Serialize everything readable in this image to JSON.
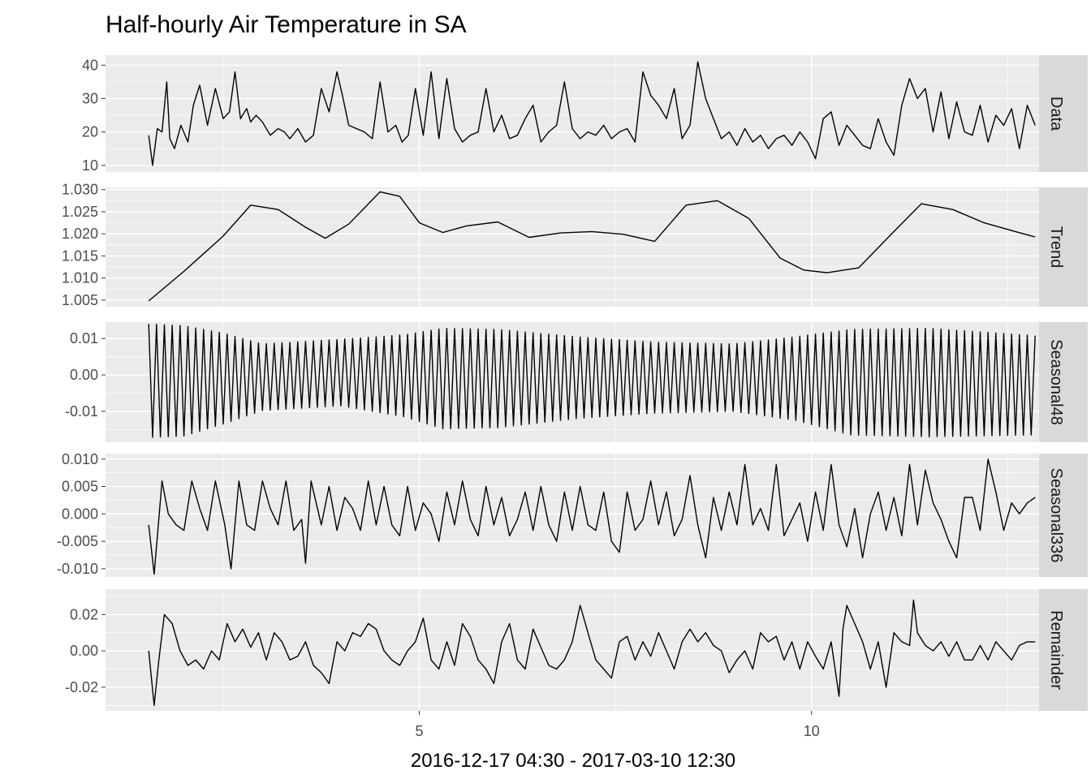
{
  "chart_data": {
    "type": "line",
    "title": "Half-hourly Air Temperature in SA",
    "xlabel": "2016-12-17 04:30 - 2017-03-10 12:30",
    "x_range": [
      1,
      12.9
    ],
    "x_ticks": [
      5,
      10
    ],
    "x_tick_labels": [
      "5",
      "10"
    ],
    "grid": true,
    "series_line_color": "#000000",
    "panel_background": "#ebebeb",
    "strip_background": "#d9d9d9",
    "panels": [
      {
        "name": "Data",
        "ylim": [
          8,
          43
        ],
        "y_ticks": [
          10,
          20,
          30,
          40
        ],
        "y_tick_labels": [
          "10",
          "20",
          "30",
          "40"
        ],
        "x": [
          1.55,
          1.6,
          1.66,
          1.72,
          1.78,
          1.82,
          1.88,
          1.96,
          2.05,
          2.12,
          2.2,
          2.3,
          2.4,
          2.5,
          2.58,
          2.65,
          2.72,
          2.8,
          2.85,
          2.92,
          3.0,
          3.1,
          3.2,
          3.28,
          3.35,
          3.45,
          3.55,
          3.65,
          3.75,
          3.85,
          3.95,
          4.02,
          4.1,
          4.2,
          4.3,
          4.4,
          4.5,
          4.6,
          4.7,
          4.78,
          4.86,
          4.95,
          5.05,
          5.15,
          5.25,
          5.35,
          5.45,
          5.55,
          5.65,
          5.75,
          5.85,
          5.95,
          6.05,
          6.15,
          6.25,
          6.35,
          6.45,
          6.55,
          6.65,
          6.75,
          6.85,
          6.95,
          7.05,
          7.15,
          7.25,
          7.35,
          7.45,
          7.55,
          7.65,
          7.75,
          7.85,
          7.95,
          8.05,
          8.15,
          8.25,
          8.35,
          8.45,
          8.55,
          8.65,
          8.75,
          8.85,
          8.95,
          9.05,
          9.15,
          9.25,
          9.35,
          9.45,
          9.55,
          9.65,
          9.75,
          9.85,
          9.95,
          10.05,
          10.15,
          10.25,
          10.35,
          10.45,
          10.55,
          10.65,
          10.75,
          10.85,
          10.95,
          11.05,
          11.15,
          11.25,
          11.35,
          11.45,
          11.55,
          11.65,
          11.75,
          11.85,
          11.95,
          12.05,
          12.15,
          12.25,
          12.35,
          12.45,
          12.55,
          12.65,
          12.75,
          12.85
        ],
        "values": [
          19,
          10,
          21,
          20,
          35,
          18,
          15,
          22,
          17,
          28,
          34,
          22,
          33,
          24,
          26,
          38,
          24,
          27,
          23,
          25,
          23,
          19,
          21,
          20,
          18,
          21,
          17,
          19,
          33,
          26,
          38,
          31,
          22,
          21,
          20,
          18,
          35,
          20,
          22,
          17,
          19,
          33,
          19,
          38,
          18,
          36,
          21,
          17,
          19,
          20,
          33,
          20,
          25,
          18,
          19,
          24,
          28,
          17,
          20,
          22,
          35,
          21,
          18,
          20,
          19,
          22,
          18,
          20,
          21,
          17,
          38,
          31,
          28,
          24,
          33,
          18,
          22,
          41,
          30,
          24,
          18,
          20,
          16,
          21,
          17,
          19,
          15,
          18,
          19,
          16,
          20,
          17,
          12,
          24,
          26,
          16,
          22,
          19,
          16,
          15,
          24,
          17,
          13,
          28,
          36,
          30,
          33,
          20,
          32,
          18,
          29,
          20,
          19,
          28,
          17,
          25,
          22,
          27,
          15,
          28,
          22
        ]
      },
      {
        "name": "Trend",
        "ylim": [
          1.0035,
          1.0305
        ],
        "y_ticks": [
          1.005,
          1.01,
          1.015,
          1.02,
          1.025,
          1.03
        ],
        "y_tick_labels": [
          "1.005",
          "1.010",
          "1.015",
          "1.020",
          "1.025",
          "1.030"
        ],
        "x": [
          1.55,
          2.0,
          2.5,
          2.85,
          3.2,
          3.55,
          3.8,
          4.1,
          4.5,
          4.75,
          5.0,
          5.3,
          5.6,
          6.0,
          6.4,
          6.8,
          7.2,
          7.6,
          8.0,
          8.4,
          8.8,
          9.2,
          9.6,
          9.9,
          10.2,
          10.6,
          11.0,
          11.4,
          11.8,
          12.2,
          12.6,
          12.85
        ],
        "values": [
          1.0048,
          1.0115,
          1.0195,
          1.0265,
          1.0255,
          1.0215,
          1.019,
          1.0222,
          1.0295,
          1.0285,
          1.0225,
          1.0203,
          1.0218,
          1.0227,
          1.0192,
          1.0202,
          1.0205,
          1.0199,
          1.0183,
          1.0265,
          1.0275,
          1.0235,
          1.0145,
          1.0118,
          1.0112,
          1.0123,
          1.0196,
          1.0268,
          1.0255,
          1.0225,
          1.0205,
          1.0193
        ]
      },
      {
        "name": "Seasonal48",
        "ylim": [
          -0.0185,
          0.0145
        ],
        "y_ticks": [
          -0.01,
          0.0,
          0.01
        ],
        "y_tick_labels": [
          "-0.01",
          "0.00",
          "0.01"
        ],
        "period": 0.1,
        "x_start": 1.55,
        "x_end": 12.85,
        "amplitude_knots_x": [
          1.55,
          2.0,
          2.5,
          3.0,
          4.0,
          4.8,
          5.3,
          6.0,
          7.0,
          8.0,
          9.0,
          9.8,
          10.5,
          11.5,
          12.85
        ],
        "amplitude_knots_min": [
          -0.0172,
          -0.0168,
          -0.0135,
          -0.0098,
          -0.0085,
          -0.0115,
          -0.0148,
          -0.0145,
          -0.012,
          -0.0105,
          -0.01,
          -0.0125,
          -0.0165,
          -0.017,
          -0.0165
        ],
        "amplitude_knots_max": [
          0.014,
          0.0135,
          0.0115,
          0.0085,
          0.0098,
          0.011,
          0.0128,
          0.0125,
          0.0105,
          0.009,
          0.0085,
          0.0105,
          0.0125,
          0.0128,
          0.0108
        ]
      },
      {
        "name": "Seasonal336",
        "ylim": [
          -0.0115,
          0.011
        ],
        "y_ticks": [
          -0.01,
          -0.005,
          0.0,
          0.005,
          0.01
        ],
        "y_tick_labels": [
          "-0.010",
          "-0.005",
          "0.000",
          "0.005",
          "0.010"
        ],
        "x": [
          1.55,
          1.62,
          1.72,
          1.8,
          1.9,
          2.0,
          2.1,
          2.2,
          2.3,
          2.4,
          2.52,
          2.6,
          2.7,
          2.8,
          2.9,
          3.0,
          3.1,
          3.2,
          3.3,
          3.4,
          3.5,
          3.55,
          3.62,
          3.75,
          3.85,
          3.95,
          4.05,
          4.15,
          4.25,
          4.35,
          4.45,
          4.55,
          4.65,
          4.75,
          4.85,
          4.95,
          5.05,
          5.15,
          5.25,
          5.35,
          5.45,
          5.55,
          5.65,
          5.75,
          5.85,
          5.95,
          6.05,
          6.15,
          6.25,
          6.35,
          6.45,
          6.55,
          6.65,
          6.75,
          6.85,
          6.95,
          7.05,
          7.15,
          7.25,
          7.35,
          7.45,
          7.55,
          7.65,
          7.75,
          7.85,
          7.95,
          8.05,
          8.15,
          8.25,
          8.35,
          8.45,
          8.55,
          8.65,
          8.75,
          8.85,
          8.95,
          9.05,
          9.15,
          9.25,
          9.35,
          9.45,
          9.55,
          9.65,
          9.75,
          9.85,
          9.95,
          10.05,
          10.15,
          10.25,
          10.35,
          10.45,
          10.55,
          10.65,
          10.75,
          10.85,
          10.95,
          11.05,
          11.15,
          11.25,
          11.35,
          11.45,
          11.55,
          11.65,
          11.75,
          11.85,
          11.95,
          12.05,
          12.15,
          12.25,
          12.35,
          12.45,
          12.55,
          12.65,
          12.75,
          12.85
        ],
        "values": [
          -0.002,
          -0.011,
          0.006,
          0.0,
          -0.002,
          -0.003,
          0.006,
          0.001,
          -0.003,
          0.006,
          -0.002,
          -0.01,
          0.006,
          -0.002,
          -0.003,
          0.006,
          0.001,
          -0.002,
          0.006,
          -0.003,
          -0.001,
          -0.009,
          0.006,
          -0.002,
          0.005,
          -0.003,
          0.003,
          0.001,
          -0.003,
          0.006,
          -0.002,
          0.005,
          -0.002,
          -0.004,
          0.005,
          -0.003,
          0.002,
          0.0,
          -0.005,
          0.004,
          -0.002,
          0.006,
          -0.001,
          -0.004,
          0.005,
          -0.002,
          0.003,
          -0.004,
          -0.001,
          0.004,
          -0.003,
          0.005,
          -0.002,
          -0.005,
          0.004,
          -0.003,
          0.005,
          -0.002,
          -0.003,
          0.004,
          -0.005,
          -0.007,
          0.004,
          -0.003,
          -0.001,
          0.006,
          -0.002,
          0.004,
          -0.004,
          -0.001,
          0.007,
          -0.002,
          -0.008,
          0.003,
          -0.003,
          0.004,
          -0.002,
          0.009,
          -0.002,
          0.001,
          -0.003,
          0.009,
          -0.004,
          -0.001,
          0.002,
          -0.005,
          0.004,
          -0.003,
          0.009,
          -0.002,
          -0.006,
          0.001,
          -0.008,
          0.0,
          0.004,
          -0.003,
          0.003,
          -0.004,
          0.009,
          -0.002,
          0.008,
          0.002,
          -0.001,
          -0.005,
          -0.008,
          0.003,
          0.003,
          -0.003,
          0.01,
          0.004,
          -0.003,
          0.002,
          0.0,
          0.002,
          0.003
        ]
      },
      {
        "name": "Remainder",
        "ylim": [
          -0.033,
          0.034
        ],
        "y_ticks": [
          -0.02,
          0.0,
          0.02
        ],
        "y_tick_labels": [
          "-0.02",
          "0.00",
          "0.02"
        ],
        "x": [
          1.55,
          1.62,
          1.68,
          1.75,
          1.85,
          1.95,
          2.05,
          2.15,
          2.25,
          2.35,
          2.45,
          2.55,
          2.65,
          2.75,
          2.85,
          2.95,
          3.05,
          3.15,
          3.25,
          3.35,
          3.45,
          3.55,
          3.65,
          3.75,
          3.85,
          3.95,
          4.05,
          4.15,
          4.25,
          4.35,
          4.45,
          4.55,
          4.65,
          4.75,
          4.85,
          4.95,
          5.05,
          5.15,
          5.25,
          5.35,
          5.45,
          5.55,
          5.65,
          5.75,
          5.85,
          5.95,
          6.05,
          6.15,
          6.25,
          6.35,
          6.45,
          6.55,
          6.65,
          6.75,
          6.85,
          6.95,
          7.05,
          7.15,
          7.25,
          7.35,
          7.45,
          7.55,
          7.65,
          7.75,
          7.85,
          7.95,
          8.05,
          8.15,
          8.25,
          8.35,
          8.45,
          8.55,
          8.65,
          8.75,
          8.85,
          8.95,
          9.05,
          9.15,
          9.25,
          9.35,
          9.45,
          9.55,
          9.65,
          9.75,
          9.85,
          9.95,
          10.05,
          10.15,
          10.25,
          10.35,
          10.4,
          10.45,
          10.55,
          10.65,
          10.75,
          10.85,
          10.95,
          11.05,
          11.15,
          11.25,
          11.3,
          11.35,
          11.45,
          11.55,
          11.65,
          11.75,
          11.85,
          11.95,
          12.05,
          12.15,
          12.25,
          12.35,
          12.45,
          12.55,
          12.65,
          12.75,
          12.85
        ],
        "values": [
          0.0,
          -0.03,
          -0.005,
          0.02,
          0.015,
          0.0,
          -0.008,
          -0.005,
          -0.01,
          0.0,
          -0.005,
          0.015,
          0.005,
          0.012,
          0.002,
          0.01,
          -0.005,
          0.01,
          0.005,
          -0.005,
          -0.003,
          0.005,
          -0.008,
          -0.012,
          -0.018,
          0.005,
          0.0,
          0.01,
          0.008,
          0.015,
          0.012,
          0.0,
          -0.005,
          -0.008,
          0.0,
          0.005,
          0.018,
          -0.005,
          -0.01,
          0.005,
          -0.008,
          0.015,
          0.008,
          -0.005,
          -0.01,
          -0.018,
          0.005,
          0.015,
          -0.005,
          -0.01,
          0.012,
          0.002,
          -0.008,
          -0.01,
          -0.005,
          0.005,
          0.025,
          0.01,
          -0.005,
          -0.01,
          -0.015,
          0.005,
          0.008,
          -0.005,
          0.005,
          -0.003,
          0.01,
          0.0,
          -0.01,
          0.005,
          0.012,
          0.005,
          0.01,
          0.003,
          0.0,
          -0.012,
          -0.005,
          0.0,
          -0.01,
          0.01,
          0.005,
          0.008,
          -0.005,
          0.005,
          -0.01,
          0.005,
          -0.003,
          -0.01,
          0.005,
          -0.025,
          0.012,
          0.025,
          0.015,
          0.005,
          -0.01,
          0.005,
          -0.02,
          0.01,
          0.005,
          0.003,
          0.028,
          0.01,
          0.003,
          0.0,
          0.005,
          -0.003,
          0.005,
          -0.005,
          -0.005,
          0.003,
          -0.005,
          0.005,
          0.0,
          -0.005,
          0.003,
          0.005,
          0.005
        ]
      }
    ]
  }
}
